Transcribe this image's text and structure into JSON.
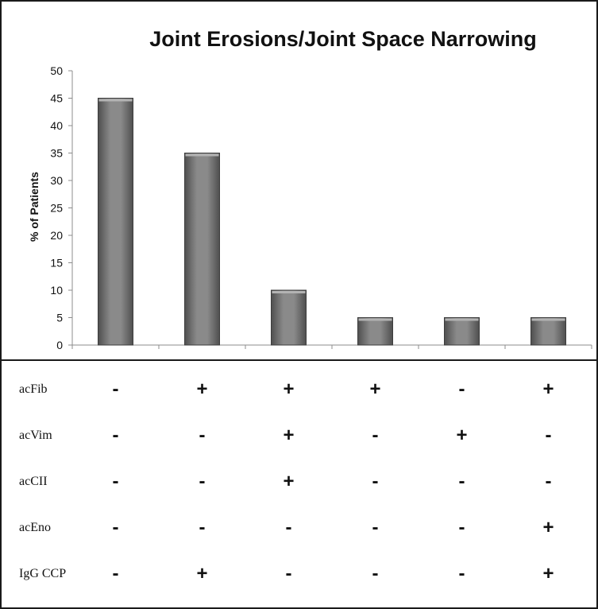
{
  "chart_data": {
    "type": "bar",
    "title": "Joint Erosions/Joint Space Narrowing",
    "ylabel": "% of Patients",
    "xlabel": "",
    "ylim": [
      0,
      50
    ],
    "yticks": [
      0,
      5,
      10,
      15,
      20,
      25,
      30,
      35,
      40,
      45,
      50
    ],
    "values": [
      45,
      35,
      10,
      5,
      5,
      5
    ],
    "bar_color": "#7a7a7a",
    "grid": false
  },
  "marker_table": {
    "rows": [
      {
        "label": "acFib",
        "signs": [
          "-",
          "+",
          "+",
          "+",
          "-",
          "+"
        ]
      },
      {
        "label": "acVim",
        "signs": [
          "-",
          "-",
          "+",
          "-",
          "+",
          "-"
        ]
      },
      {
        "label": "acCII",
        "signs": [
          "-",
          "-",
          "+",
          "-",
          "-",
          "-"
        ]
      },
      {
        "label": "acEno",
        "signs": [
          "-",
          "-",
          "-",
          "-",
          "-",
          "+"
        ]
      },
      {
        "label": "IgG CCP",
        "signs": [
          "-",
          "+",
          "-",
          "-",
          "-",
          "+"
        ]
      }
    ]
  }
}
